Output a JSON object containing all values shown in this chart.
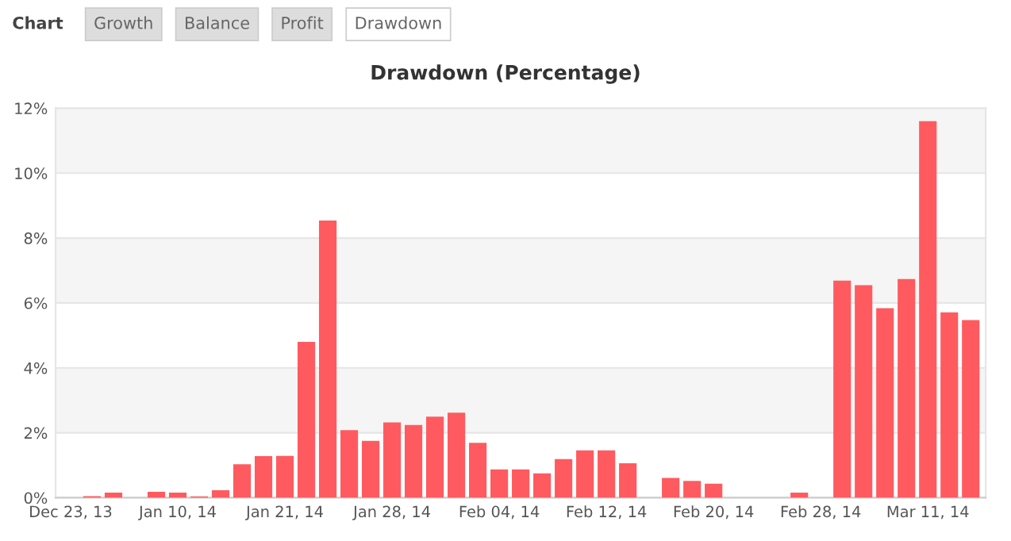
{
  "chart_data": {
    "type": "bar",
    "title": "Drawdown (Percentage)",
    "categories": [
      "Dec 23, 13",
      null,
      null,
      null,
      null,
      "Jan 10, 14",
      null,
      null,
      null,
      null,
      "Jan 21, 14",
      null,
      null,
      null,
      null,
      "Jan 28, 14",
      null,
      null,
      null,
      null,
      "Feb 04, 14",
      null,
      null,
      null,
      null,
      "Feb 12, 14",
      null,
      null,
      null,
      null,
      "Feb 20, 14",
      null,
      null,
      null,
      null,
      "Feb 28, 14",
      null,
      null,
      null,
      null,
      "Mar 11, 14",
      null,
      null
    ],
    "values": [
      0,
      0.05,
      0.16,
      0,
      0.18,
      0.16,
      0.04,
      0.23,
      1.03,
      1.28,
      1.29,
      4.8,
      8.54,
      2.08,
      1.75,
      2.32,
      2.24,
      2.5,
      2.62,
      1.69,
      0.87,
      0.87,
      0.75,
      1.19,
      1.46,
      1.46,
      1.06,
      0,
      0.61,
      0.52,
      0.43,
      0,
      0,
      0,
      0.16,
      0,
      6.69,
      6.55,
      5.84,
      6.74,
      11.6,
      5.71,
      5.47
    ],
    "color": "#ff5a5f",
    "ylim": [
      0,
      12
    ],
    "yticks": [
      {
        "value": 0,
        "label": "0%"
      },
      {
        "value": 2,
        "label": "2%"
      },
      {
        "value": 4,
        "label": "4%"
      },
      {
        "value": 6,
        "label": "6%"
      },
      {
        "value": 8,
        "label": "8%"
      },
      {
        "value": 10,
        "label": "10%"
      },
      {
        "value": 12,
        "label": "12%"
      }
    ],
    "grid": "y",
    "annotations": [
      "Chart",
      "Growth",
      "Balance",
      "Profit",
      "Drawdown"
    ]
  }
}
